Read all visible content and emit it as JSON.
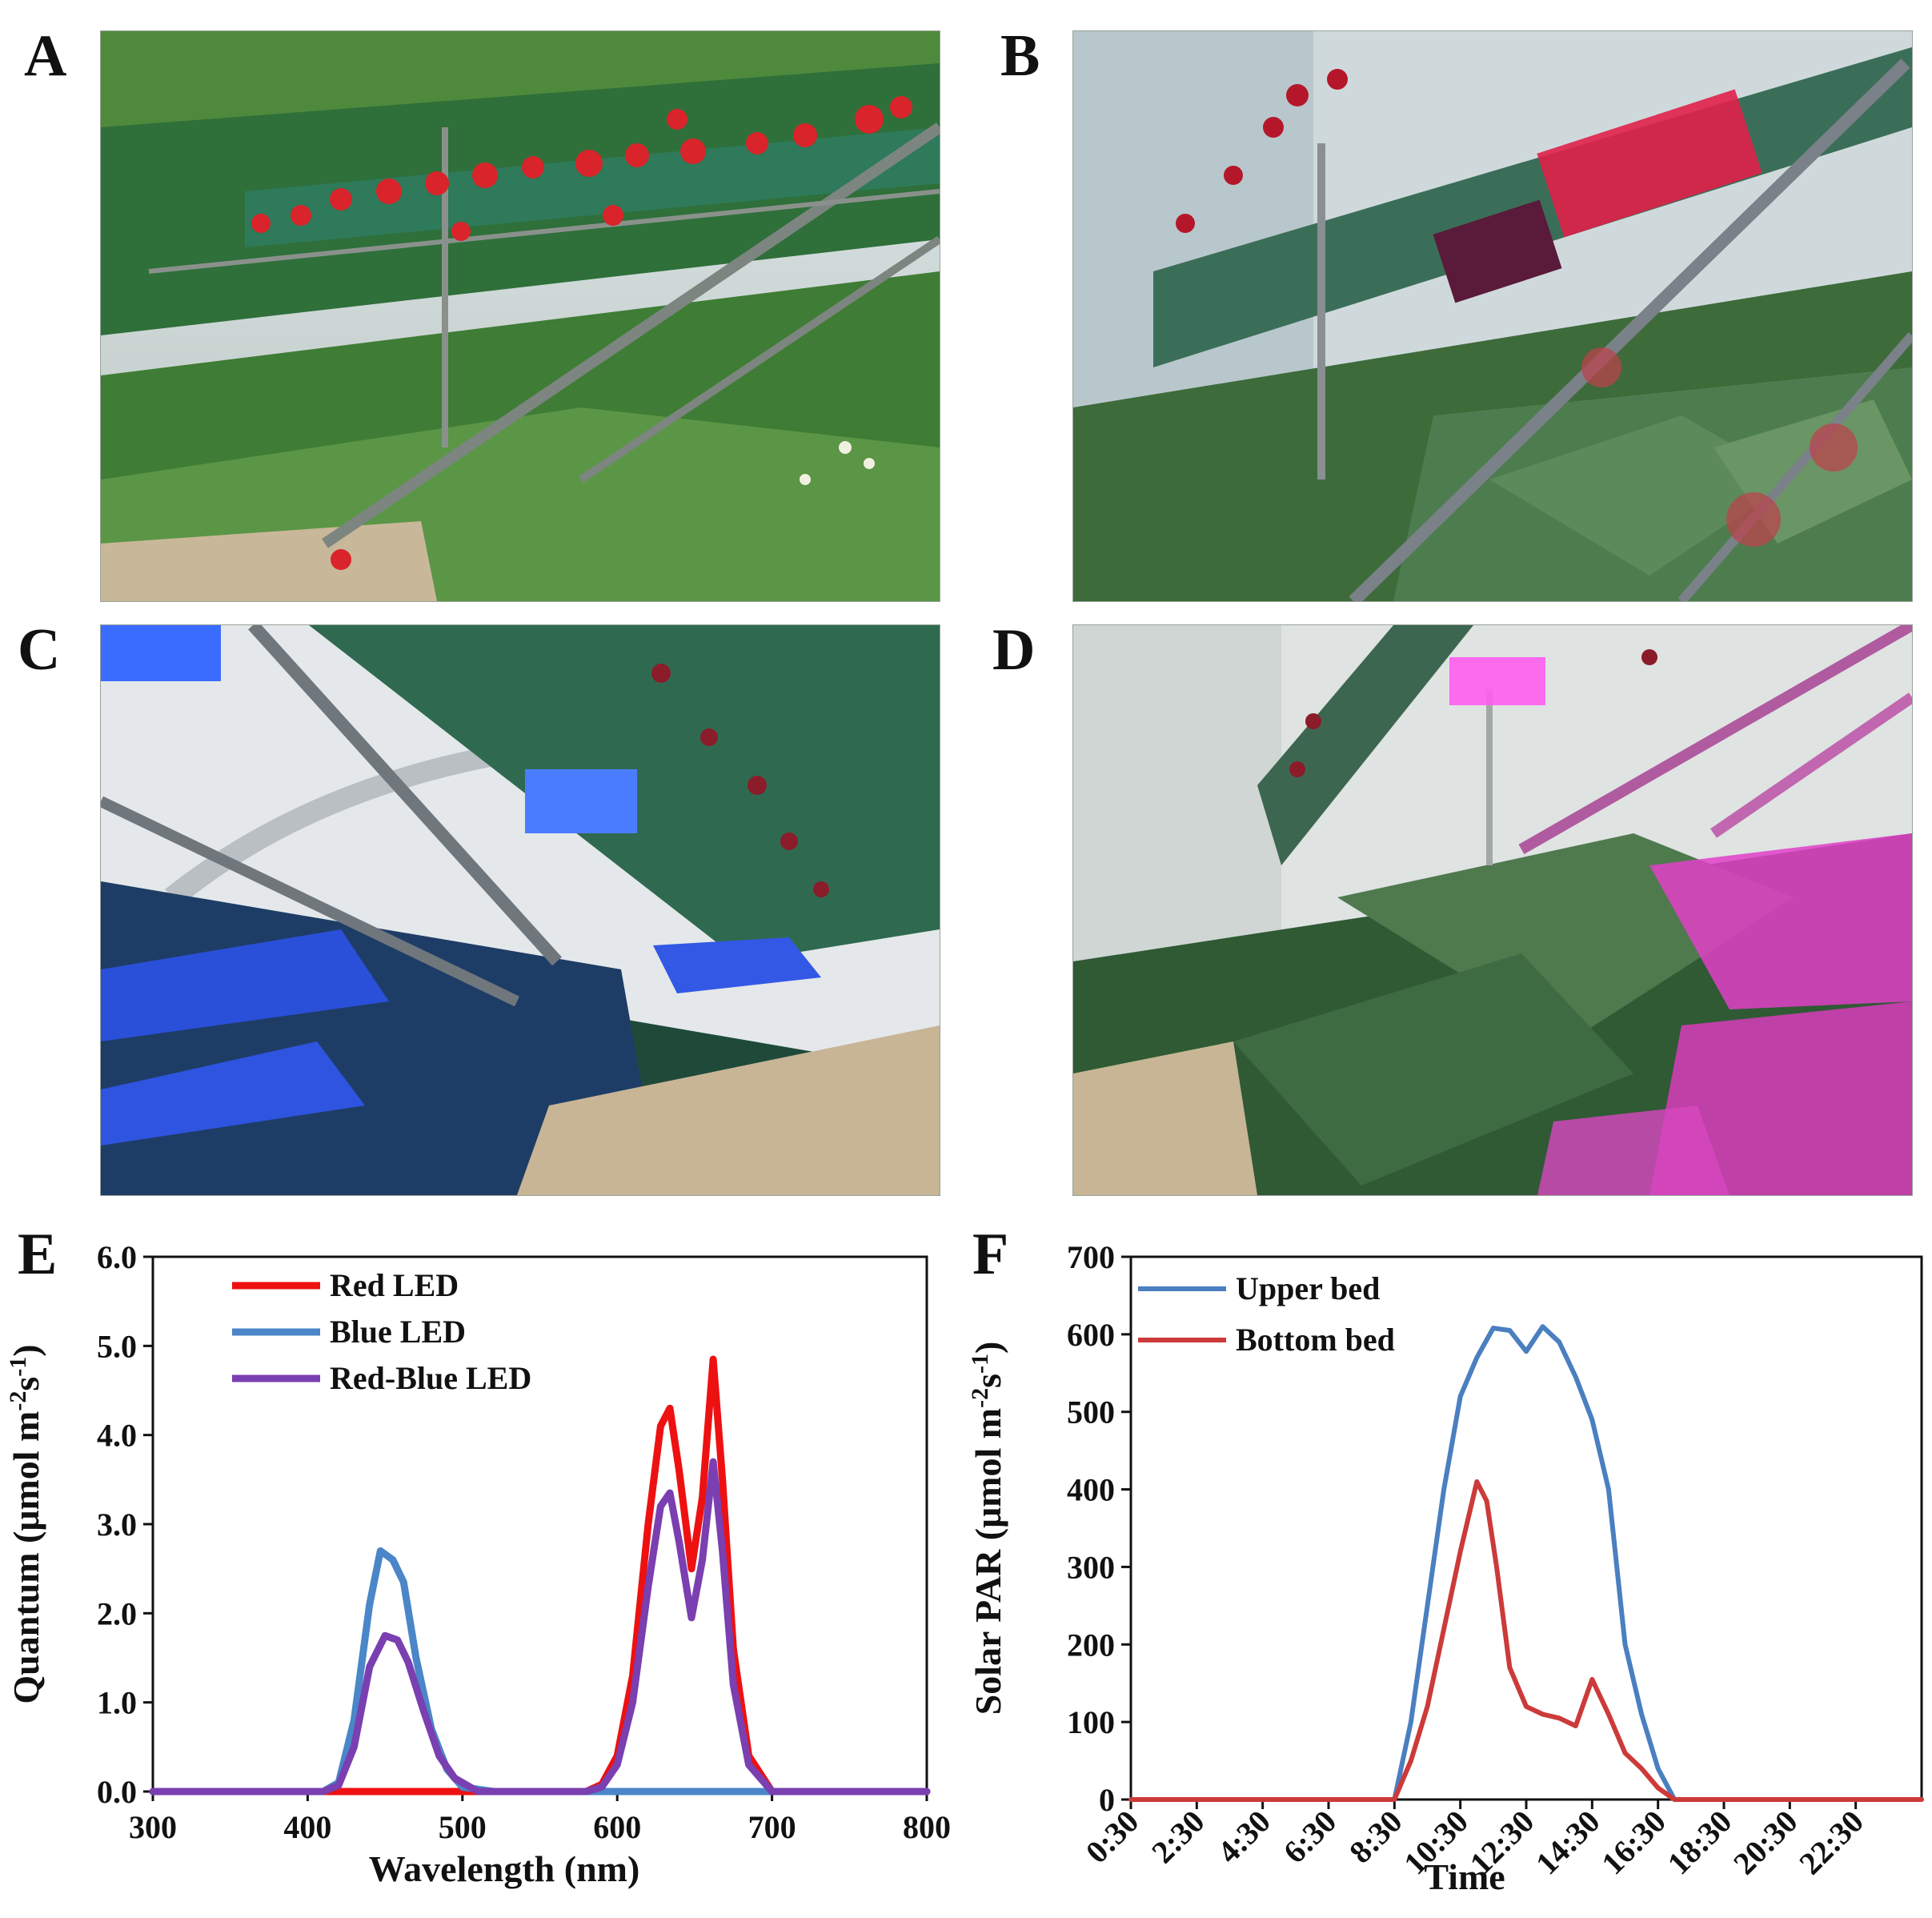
{
  "panels": {
    "A": "A",
    "B": "B",
    "C": "C",
    "D": "D",
    "E": "E",
    "F": "F"
  },
  "photos": [
    {
      "panel": "A",
      "lighting": "natural",
      "icon": "strawberry-greenhouse-photo",
      "led_color": "#ffffff"
    },
    {
      "panel": "B",
      "lighting": "red LED",
      "icon": "strawberry-greenhouse-photo",
      "led_color": "#e0204a"
    },
    {
      "panel": "C",
      "lighting": "blue LED",
      "icon": "strawberry-greenhouse-photo",
      "led_color": "#2f5bff"
    },
    {
      "panel": "D",
      "lighting": "red-blue LED",
      "icon": "strawberry-greenhouse-photo",
      "led_color": "#e040c8"
    }
  ],
  "chart_data": [
    {
      "type": "line",
      "panel": "E",
      "title": "",
      "xlabel": "Wavelength (nm)",
      "ylabel": "Quantum (μmol m-2s-1)",
      "ylabel_parts": {
        "main": "Quantum (μmol m",
        "sup1": "-2",
        "mid": "s",
        "sup2": "-1",
        "end": ")"
      },
      "xlim": [
        300,
        800
      ],
      "ylim": [
        0,
        6
      ],
      "x_ticks": [
        "300",
        "400",
        "500",
        "600",
        "700",
        "800"
      ],
      "x_tick_values": [
        300,
        400,
        500,
        600,
        700,
        800
      ],
      "y_ticks": [
        "0.0",
        "1.0",
        "2.0",
        "3.0",
        "4.0",
        "5.0",
        "6.0"
      ],
      "y_tick_values": [
        0,
        1,
        2,
        3,
        4,
        5,
        6
      ],
      "grid": false,
      "legend": "top-left",
      "series": [
        {
          "name": "Red LED",
          "color": "#ee1111",
          "x": [
            300,
            580,
            590,
            600,
            610,
            620,
            628,
            634,
            640,
            648,
            655,
            662,
            668,
            675,
            685,
            700,
            800
          ],
          "y": [
            0,
            0,
            0.08,
            0.4,
            1.3,
            3.0,
            4.1,
            4.3,
            3.6,
            2.5,
            3.3,
            4.85,
            3.5,
            1.6,
            0.4,
            0,
            0
          ]
        },
        {
          "name": "Blue LED",
          "color": "#4a86c8",
          "x": [
            300,
            410,
            420,
            430,
            440,
            447,
            455,
            462,
            470,
            480,
            490,
            500,
            520,
            800
          ],
          "y": [
            0,
            0,
            0.1,
            0.8,
            2.1,
            2.7,
            2.6,
            2.35,
            1.5,
            0.7,
            0.25,
            0.05,
            0,
            0
          ]
        },
        {
          "name": "Red-Blue LED",
          "color": "#7a3fb0",
          "x": [
            300,
            410,
            420,
            430,
            440,
            450,
            458,
            465,
            475,
            485,
            495,
            510,
            580,
            590,
            600,
            610,
            620,
            628,
            634,
            640,
            648,
            655,
            662,
            668,
            675,
            685,
            700,
            800
          ],
          "y": [
            0,
            0,
            0.07,
            0.5,
            1.4,
            1.75,
            1.7,
            1.45,
            0.9,
            0.4,
            0.15,
            0,
            0,
            0.05,
            0.3,
            1.0,
            2.3,
            3.2,
            3.35,
            2.8,
            1.95,
            2.6,
            3.7,
            2.7,
            1.2,
            0.3,
            0,
            0
          ]
        }
      ]
    },
    {
      "type": "line",
      "panel": "F",
      "title": "",
      "xlabel": "Time",
      "ylabel": "Solar PAR (μmol m-2s-1)",
      "ylabel_parts": {
        "main": "Solar PAR (μmol m",
        "sup1": "-2",
        "mid": "s",
        "sup2": "-1",
        "end": ")"
      },
      "xlim": [
        0.5,
        24.5
      ],
      "ylim": [
        0,
        700
      ],
      "x_ticks": [
        "0:30",
        "2:30",
        "4:30",
        "6:30",
        "8:30",
        "10:30",
        "12:30",
        "14:30",
        "16:30",
        "18:30",
        "20:30",
        "22:30"
      ],
      "x_tick_values": [
        0.5,
        2.5,
        4.5,
        6.5,
        8.5,
        10.5,
        12.5,
        14.5,
        16.5,
        18.5,
        20.5,
        22.5
      ],
      "y_ticks": [
        "0",
        "100",
        "200",
        "300",
        "400",
        "500",
        "600",
        "700"
      ],
      "y_tick_values": [
        0,
        100,
        200,
        300,
        400,
        500,
        600,
        700
      ],
      "grid": false,
      "legend": "top-left",
      "series": [
        {
          "name": "Upper bed",
          "color": "#4a7fc0",
          "x": [
            0.5,
            8.5,
            9.0,
            9.5,
            10.0,
            10.5,
            11.0,
            11.5,
            12.0,
            12.5,
            13.0,
            13.5,
            14.0,
            14.5,
            15.0,
            15.5,
            16.0,
            16.5,
            17.0,
            24.5
          ],
          "y": [
            0,
            0,
            100,
            250,
            400,
            520,
            570,
            608,
            605,
            578,
            610,
            590,
            545,
            490,
            400,
            200,
            110,
            40,
            0,
            0
          ]
        },
        {
          "name": "Bottom bed",
          "color": "#cc3a3a",
          "x": [
            0.5,
            8.5,
            9.0,
            9.5,
            10.0,
            10.5,
            11.0,
            11.3,
            11.6,
            12.0,
            12.5,
            13.0,
            13.5,
            14.0,
            14.5,
            15.0,
            15.5,
            16.0,
            16.5,
            17.0,
            24.5
          ],
          "y": [
            0,
            0,
            50,
            120,
            220,
            320,
            410,
            385,
            300,
            170,
            120,
            110,
            105,
            95,
            155,
            110,
            60,
            40,
            15,
            0,
            0
          ]
        }
      ]
    }
  ]
}
